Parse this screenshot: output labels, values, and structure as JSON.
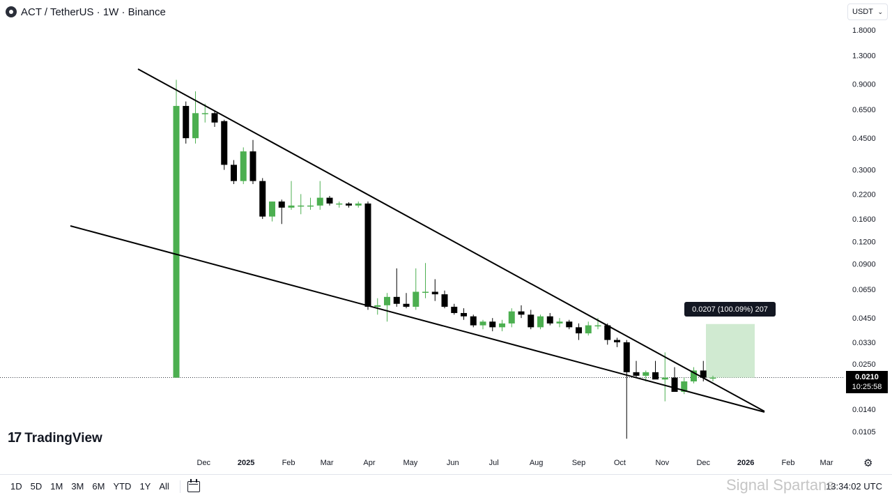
{
  "header": {
    "title": "ACT / TetherUS · 1W · Binance"
  },
  "currency": {
    "label": "USDT"
  },
  "price_axis": [
    "1.8000",
    "1.3000",
    "0.9000",
    "0.6500",
    "0.4500",
    "0.3000",
    "0.2200",
    "0.1600",
    "0.1200",
    "0.0900",
    "0.0650",
    "0.0450",
    "0.0330",
    "0.0250",
    "0.0140",
    "0.0105"
  ],
  "time_axis": [
    "Dec",
    "2025",
    "Feb",
    "Mar",
    "Apr",
    "May",
    "Jun",
    "Jul",
    "Aug",
    "Sep",
    "Oct",
    "Nov",
    "Dec",
    "2026",
    "Feb",
    "Mar"
  ],
  "last_price": {
    "price": "0.0210",
    "countdown": "10:25:58"
  },
  "measure": {
    "label": "0.0207 (100.09%) 207"
  },
  "logo": {
    "text": "TradingView"
  },
  "ranges": [
    "1D",
    "5D",
    "1M",
    "3M",
    "6M",
    "YTD",
    "1Y",
    "All"
  ],
  "clock": "13:34:02 UTC",
  "watermark": "Signal Spartans",
  "colors": {
    "up": "#4caf50",
    "down": "#000000",
    "measure_fill": "#c8e6c9"
  },
  "chart_data": {
    "type": "candlestick",
    "interval": "1W",
    "scale": "log",
    "ylim": [
      0.0095,
      1.9
    ],
    "candles": [
      {
        "t": "2024-11-11",
        "o": 0.021,
        "h": 0.95,
        "l": 0.021,
        "c": 0.68
      },
      {
        "t": "2024-11-18",
        "o": 0.68,
        "h": 0.72,
        "l": 0.42,
        "c": 0.45
      },
      {
        "t": "2024-11-25",
        "o": 0.45,
        "h": 0.82,
        "l": 0.42,
        "c": 0.62
      },
      {
        "t": "2024-12-02",
        "o": 0.62,
        "h": 0.7,
        "l": 0.55,
        "c": 0.62
      },
      {
        "t": "2024-12-09",
        "o": 0.62,
        "h": 0.64,
        "l": 0.52,
        "c": 0.55
      },
      {
        "t": "2024-12-16",
        "o": 0.56,
        "h": 0.57,
        "l": 0.3,
        "c": 0.32
      },
      {
        "t": "2024-12-23",
        "o": 0.32,
        "h": 0.34,
        "l": 0.25,
        "c": 0.26
      },
      {
        "t": "2024-12-30",
        "o": 0.26,
        "h": 0.4,
        "l": 0.25,
        "c": 0.38
      },
      {
        "t": "2025-01-06",
        "o": 0.38,
        "h": 0.44,
        "l": 0.25,
        "c": 0.26
      },
      {
        "t": "2025-01-13",
        "o": 0.26,
        "h": 0.27,
        "l": 0.16,
        "c": 0.165
      },
      {
        "t": "2025-01-20",
        "o": 0.165,
        "h": 0.2,
        "l": 0.155,
        "c": 0.2
      },
      {
        "t": "2025-01-27",
        "o": 0.2,
        "h": 0.205,
        "l": 0.15,
        "c": 0.185
      },
      {
        "t": "2025-02-03",
        "o": 0.185,
        "h": 0.26,
        "l": 0.18,
        "c": 0.19
      },
      {
        "t": "2025-02-10",
        "o": 0.19,
        "h": 0.22,
        "l": 0.17,
        "c": 0.19
      },
      {
        "t": "2025-02-17",
        "o": 0.19,
        "h": 0.21,
        "l": 0.18,
        "c": 0.19
      },
      {
        "t": "2025-02-24",
        "o": 0.19,
        "h": 0.26,
        "l": 0.18,
        "c": 0.21
      },
      {
        "t": "2025-03-03",
        "o": 0.21,
        "h": 0.215,
        "l": 0.19,
        "c": 0.195
      },
      {
        "t": "2025-03-10",
        "o": 0.195,
        "h": 0.2,
        "l": 0.185,
        "c": 0.195
      },
      {
        "t": "2025-03-17",
        "o": 0.195,
        "h": 0.198,
        "l": 0.185,
        "c": 0.19
      },
      {
        "t": "2025-03-24",
        "o": 0.19,
        "h": 0.2,
        "l": 0.185,
        "c": 0.195
      },
      {
        "t": "2025-03-31",
        "o": 0.195,
        "h": 0.2,
        "l": 0.05,
        "c": 0.052
      },
      {
        "t": "2025-04-07",
        "o": 0.052,
        "h": 0.058,
        "l": 0.047,
        "c": 0.053
      },
      {
        "t": "2025-04-14",
        "o": 0.053,
        "h": 0.062,
        "l": 0.043,
        "c": 0.059
      },
      {
        "t": "2025-04-21",
        "o": 0.059,
        "h": 0.085,
        "l": 0.052,
        "c": 0.054
      },
      {
        "t": "2025-04-28",
        "o": 0.054,
        "h": 0.062,
        "l": 0.051,
        "c": 0.052
      },
      {
        "t": "2025-05-05",
        "o": 0.052,
        "h": 0.085,
        "l": 0.05,
        "c": 0.063
      },
      {
        "t": "2025-05-12",
        "o": 0.063,
        "h": 0.091,
        "l": 0.058,
        "c": 0.063
      },
      {
        "t": "2025-05-19",
        "o": 0.063,
        "h": 0.074,
        "l": 0.056,
        "c": 0.061
      },
      {
        "t": "2025-05-26",
        "o": 0.061,
        "h": 0.064,
        "l": 0.051,
        "c": 0.052
      },
      {
        "t": "2025-06-02",
        "o": 0.052,
        "h": 0.054,
        "l": 0.047,
        "c": 0.048
      },
      {
        "t": "2025-06-09",
        "o": 0.048,
        "h": 0.051,
        "l": 0.044,
        "c": 0.046
      },
      {
        "t": "2025-06-16",
        "o": 0.046,
        "h": 0.047,
        "l": 0.04,
        "c": 0.041
      },
      {
        "t": "2025-06-23",
        "o": 0.041,
        "h": 0.044,
        "l": 0.039,
        "c": 0.043
      },
      {
        "t": "2025-06-30",
        "o": 0.043,
        "h": 0.045,
        "l": 0.038,
        "c": 0.04
      },
      {
        "t": "2025-07-07",
        "o": 0.04,
        "h": 0.044,
        "l": 0.038,
        "c": 0.042
      },
      {
        "t": "2025-07-14",
        "o": 0.042,
        "h": 0.051,
        "l": 0.04,
        "c": 0.049
      },
      {
        "t": "2025-07-21",
        "o": 0.049,
        "h": 0.053,
        "l": 0.045,
        "c": 0.047
      },
      {
        "t": "2025-07-28",
        "o": 0.047,
        "h": 0.05,
        "l": 0.039,
        "c": 0.04
      },
      {
        "t": "2025-08-04",
        "o": 0.04,
        "h": 0.047,
        "l": 0.039,
        "c": 0.046
      },
      {
        "t": "2025-08-11",
        "o": 0.046,
        "h": 0.048,
        "l": 0.041,
        "c": 0.042
      },
      {
        "t": "2025-08-18",
        "o": 0.042,
        "h": 0.045,
        "l": 0.04,
        "c": 0.043
      },
      {
        "t": "2025-08-25",
        "o": 0.043,
        "h": 0.044,
        "l": 0.039,
        "c": 0.04
      },
      {
        "t": "2025-09-01",
        "o": 0.04,
        "h": 0.042,
        "l": 0.034,
        "c": 0.037
      },
      {
        "t": "2025-09-08",
        "o": 0.037,
        "h": 0.043,
        "l": 0.036,
        "c": 0.041
      },
      {
        "t": "2025-09-15",
        "o": 0.041,
        "h": 0.045,
        "l": 0.039,
        "c": 0.041
      },
      {
        "t": "2025-09-22",
        "o": 0.041,
        "h": 0.042,
        "l": 0.032,
        "c": 0.034
      },
      {
        "t": "2025-09-29",
        "o": 0.034,
        "h": 0.035,
        "l": 0.031,
        "c": 0.033
      },
      {
        "t": "2025-10-06",
        "o": 0.033,
        "h": 0.034,
        "l": 0.0096,
        "c": 0.0225
      },
      {
        "t": "2025-10-13",
        "o": 0.0225,
        "h": 0.026,
        "l": 0.021,
        "c": 0.0215
      },
      {
        "t": "2025-10-20",
        "o": 0.0215,
        "h": 0.023,
        "l": 0.02,
        "c": 0.0225
      },
      {
        "t": "2025-10-27",
        "o": 0.0225,
        "h": 0.026,
        "l": 0.021,
        "c": 0.0205
      },
      {
        "t": "2025-11-03",
        "o": 0.0205,
        "h": 0.029,
        "l": 0.0155,
        "c": 0.021
      },
      {
        "t": "2025-11-10",
        "o": 0.021,
        "h": 0.024,
        "l": 0.018,
        "c": 0.0175
      },
      {
        "t": "2025-11-17",
        "o": 0.0175,
        "h": 0.021,
        "l": 0.017,
        "c": 0.02
      },
      {
        "t": "2025-11-24",
        "o": 0.02,
        "h": 0.024,
        "l": 0.0195,
        "c": 0.023
      },
      {
        "t": "2025-12-01",
        "o": 0.023,
        "h": 0.026,
        "l": 0.02,
        "c": 0.021
      },
      {
        "t": "2025-12-08",
        "o": 0.021,
        "h": 0.0215,
        "l": 0.02,
        "c": 0.021
      }
    ]
  }
}
